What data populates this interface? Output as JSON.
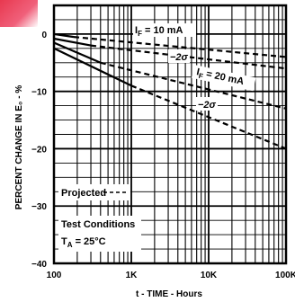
{
  "chart_data": {
    "type": "line",
    "xlabel": "t - TIME - Hours",
    "ylabel": "PERCENT CHANGE IN E₀ - %",
    "x_scale": "log",
    "xlim": [
      100,
      10000
    ],
    "ylim": [
      -40,
      5
    ],
    "x_ticks": [
      {
        "value": 100,
        "label": "100"
      },
      {
        "value": 1000,
        "label": "1K"
      },
      {
        "value": 10000,
        "label": "10K"
      },
      {
        "value": 100000,
        "label": "100K"
      }
    ],
    "y_ticks": [
      {
        "value": 0,
        "label": "0"
      },
      {
        "value": -10,
        "label": "−10"
      },
      {
        "value": -20,
        "label": "−20"
      },
      {
        "value": -30,
        "label": "−30"
      },
      {
        "value": -40,
        "label": "−40"
      }
    ],
    "grid": true,
    "series": [
      {
        "name": "I_F = 10 mA",
        "style": "solid",
        "points": [
          [
            100,
            0
          ],
          [
            180,
            -0.5
          ]
        ]
      },
      {
        "name": "I_F = 10 mA",
        "style": "dashed",
        "points": [
          [
            180,
            -0.5
          ],
          [
            100000,
            -4
          ]
        ]
      },
      {
        "name": "-2σ",
        "style": "solid",
        "points": [
          [
            100,
            -0.8
          ],
          [
            300,
            -2
          ]
        ]
      },
      {
        "name": "-2σ",
        "style": "dashed",
        "points": [
          [
            300,
            -2
          ],
          [
            100000,
            -6
          ]
        ]
      },
      {
        "name": "I_F = 20 mA",
        "style": "solid",
        "points": [
          [
            100,
            -1.5
          ],
          [
            400,
            -5
          ]
        ]
      },
      {
        "name": "I_F = 20 mA",
        "style": "dashed",
        "points": [
          [
            400,
            -5
          ],
          [
            100000,
            -13
          ]
        ]
      },
      {
        "name": "-2σ",
        "style": "solid",
        "points": [
          [
            100,
            -2.5
          ],
          [
            1000,
            -9
          ]
        ]
      },
      {
        "name": "-2σ",
        "style": "dashed",
        "points": [
          [
            1000,
            -9
          ],
          [
            100000,
            -20
          ]
        ]
      }
    ],
    "annotations": {
      "if10": {
        "sub": "F",
        "pre": "I",
        "post": " = 10 mA"
      },
      "sig1": "−2σ",
      "if20": {
        "sub": "F",
        "pre": "I",
        "post": " = 20 mA"
      },
      "sig2": "−2σ",
      "projected": "Projected",
      "conditions_title": "Test Conditions",
      "conditions_value": {
        "pre": "T",
        "sub": "A",
        "post": " = 25°C"
      }
    }
  }
}
